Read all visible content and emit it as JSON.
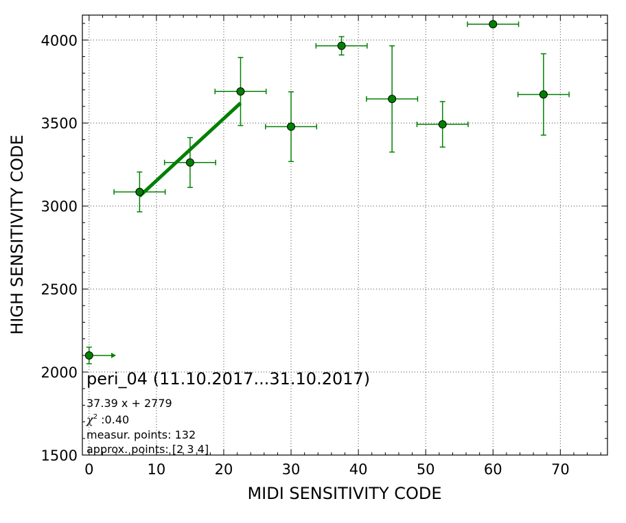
{
  "chart_data": {
    "type": "scatter",
    "xlabel": "MIDI SENSITIVITY CODE",
    "ylabel": "HIGH SENSITIVITY CODE",
    "xlim": [
      -1,
      77
    ],
    "ylim": [
      1500,
      4150
    ],
    "x_ticks": [
      0,
      10,
      20,
      30,
      40,
      50,
      60,
      70
    ],
    "y_ticks": [
      1500,
      2000,
      2500,
      3000,
      3500,
      4000
    ],
    "x_tick_labels": [
      "0",
      "10",
      "20",
      "30",
      "40",
      "50",
      "60",
      "70"
    ],
    "y_tick_labels": [
      "1500",
      "2000",
      "2500",
      "3000",
      "3500",
      "4000"
    ],
    "x_minor_step": 2,
    "y_minor_step": 100,
    "grid": true,
    "color": "#008000",
    "marker_fill": "#008000",
    "marker_edge": "#000000",
    "points": [
      {
        "x": 0,
        "y": 2100,
        "xerr": 0,
        "yerr": 50,
        "arrow_to": 4
      },
      {
        "x": 7.5,
        "y": 3085,
        "xerr": 3.8,
        "yerr": 120
      },
      {
        "x": 15,
        "y": 3262,
        "xerr": 3.8,
        "yerr": 150
      },
      {
        "x": 22.5,
        "y": 3690,
        "xerr": 3.8,
        "yerr": 205
      },
      {
        "x": 30,
        "y": 3478,
        "xerr": 3.8,
        "yerr": 210
      },
      {
        "x": 37.5,
        "y": 3965,
        "xerr": 3.8,
        "yerr": 55
      },
      {
        "x": 45,
        "y": 3645,
        "xerr": 3.8,
        "yerr": 320
      },
      {
        "x": 52.5,
        "y": 3492,
        "xerr": 3.8,
        "yerr": 137
      },
      {
        "x": 60,
        "y": 4095,
        "xerr": 3.8,
        "yerr": 0
      },
      {
        "x": 67.5,
        "y": 3672,
        "xerr": 3.8,
        "yerr": 245
      }
    ],
    "fit": {
      "slope": 37.39,
      "intercept": 2779,
      "x_from": 7.5,
      "x_to": 22.5
    },
    "annotations": {
      "title": "peri_04 (11.10.2017...31.10.2017)",
      "equation": "37.39 x + 2779",
      "chi_symbol": "χ",
      "chi_sup": "2",
      "chi_value": " :0.40",
      "measur": "measur. points: 132",
      "approx": "approx. points: [2 3 4]"
    }
  }
}
